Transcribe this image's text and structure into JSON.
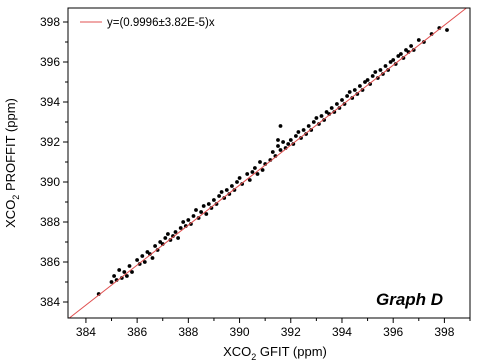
{
  "chart_data": {
    "type": "scatter",
    "xlabel": {
      "pre": "XCO",
      "sub": "2",
      "post": " GFIT (ppm)"
    },
    "ylabel": {
      "pre": "XCO",
      "sub": "2",
      "post": " PROFFIT (ppm)"
    },
    "xlim": [
      383.3,
      399.0
    ],
    "ylim": [
      383.2,
      398.7
    ],
    "xticks": [
      384,
      386,
      388,
      390,
      392,
      394,
      396,
      398
    ],
    "yticks": [
      384,
      386,
      388,
      390,
      392,
      394,
      396,
      398
    ],
    "grid": false,
    "legend": {
      "position": "top-left",
      "entries": [
        {
          "label": "y=(0.9996±3.82E-5)x",
          "color": "#e05050"
        }
      ]
    },
    "annotation": "Graph D",
    "fit_line": {
      "slope": 0.9996,
      "color": "#e05050"
    },
    "point_color": "#000000",
    "series": [
      {
        "type": "scatter",
        "points": [
          [
            384.5,
            384.4
          ],
          [
            385.0,
            385.0
          ],
          [
            385.1,
            385.3
          ],
          [
            385.2,
            385.1
          ],
          [
            385.3,
            385.6
          ],
          [
            385.4,
            385.2
          ],
          [
            385.5,
            385.5
          ],
          [
            385.6,
            385.3
          ],
          [
            385.7,
            385.8
          ],
          [
            385.8,
            385.5
          ],
          [
            386.0,
            386.1
          ],
          [
            386.1,
            385.9
          ],
          [
            386.2,
            386.3
          ],
          [
            386.3,
            386.0
          ],
          [
            386.4,
            386.5
          ],
          [
            386.5,
            386.4
          ],
          [
            386.6,
            386.2
          ],
          [
            386.7,
            386.8
          ],
          [
            386.8,
            386.6
          ],
          [
            386.9,
            387.0
          ],
          [
            387.0,
            386.9
          ],
          [
            387.1,
            387.2
          ],
          [
            387.2,
            387.4
          ],
          [
            387.3,
            387.1
          ],
          [
            387.4,
            387.3
          ],
          [
            387.5,
            387.5
          ],
          [
            387.6,
            387.2
          ],
          [
            387.7,
            387.7
          ],
          [
            387.8,
            388.0
          ],
          [
            387.9,
            387.8
          ],
          [
            388.0,
            388.1
          ],
          [
            388.1,
            387.9
          ],
          [
            388.2,
            388.3
          ],
          [
            388.3,
            388.6
          ],
          [
            388.4,
            388.2
          ],
          [
            388.5,
            388.5
          ],
          [
            388.6,
            388.8
          ],
          [
            388.7,
            388.4
          ],
          [
            388.8,
            388.9
          ],
          [
            388.9,
            388.7
          ],
          [
            389.0,
            389.1
          ],
          [
            389.1,
            388.9
          ],
          [
            389.2,
            389.3
          ],
          [
            389.3,
            389.5
          ],
          [
            389.4,
            389.2
          ],
          [
            389.5,
            389.6
          ],
          [
            389.6,
            389.4
          ],
          [
            389.7,
            389.8
          ],
          [
            389.8,
            389.6
          ],
          [
            389.9,
            390.0
          ],
          [
            390.0,
            390.2
          ],
          [
            390.1,
            389.9
          ],
          [
            390.3,
            390.4
          ],
          [
            390.4,
            390.1
          ],
          [
            390.5,
            390.5
          ],
          [
            390.6,
            390.7
          ],
          [
            390.7,
            390.4
          ],
          [
            390.8,
            391.0
          ],
          [
            390.9,
            390.6
          ],
          [
            391.0,
            390.9
          ],
          [
            391.2,
            391.1
          ],
          [
            391.3,
            391.5
          ],
          [
            391.4,
            391.3
          ],
          [
            391.5,
            391.8
          ],
          [
            391.5,
            392.1
          ],
          [
            391.6,
            391.6
          ],
          [
            391.7,
            392.0
          ],
          [
            391.8,
            391.7
          ],
          [
            391.9,
            391.9
          ],
          [
            391.6,
            392.8
          ],
          [
            392.0,
            392.1
          ],
          [
            392.1,
            391.9
          ],
          [
            392.2,
            392.3
          ],
          [
            392.3,
            392.5
          ],
          [
            392.4,
            392.2
          ],
          [
            392.5,
            392.6
          ],
          [
            392.6,
            392.4
          ],
          [
            392.7,
            392.8
          ],
          [
            392.8,
            392.6
          ],
          [
            392.9,
            393.0
          ],
          [
            393.0,
            393.2
          ],
          [
            393.1,
            392.9
          ],
          [
            393.2,
            393.3
          ],
          [
            393.3,
            393.1
          ],
          [
            393.4,
            393.5
          ],
          [
            393.5,
            393.4
          ],
          [
            393.6,
            393.7
          ],
          [
            393.7,
            393.5
          ],
          [
            393.8,
            393.9
          ],
          [
            393.9,
            393.7
          ],
          [
            394.0,
            394.1
          ],
          [
            394.1,
            393.9
          ],
          [
            394.2,
            394.3
          ],
          [
            394.3,
            394.5
          ],
          [
            394.4,
            394.2
          ],
          [
            394.5,
            394.6
          ],
          [
            394.6,
            394.4
          ],
          [
            394.7,
            394.8
          ],
          [
            394.8,
            394.6
          ],
          [
            394.9,
            395.0
          ],
          [
            395.0,
            395.1
          ],
          [
            395.1,
            394.9
          ],
          [
            395.2,
            395.3
          ],
          [
            395.3,
            395.5
          ],
          [
            395.4,
            395.2
          ],
          [
            395.5,
            395.6
          ],
          [
            395.6,
            395.4
          ],
          [
            395.7,
            395.8
          ],
          [
            395.8,
            395.6
          ],
          [
            395.9,
            396.0
          ],
          [
            396.0,
            396.1
          ],
          [
            396.1,
            395.9
          ],
          [
            396.2,
            396.3
          ],
          [
            396.3,
            396.4
          ],
          [
            396.4,
            396.2
          ],
          [
            396.5,
            396.6
          ],
          [
            396.6,
            396.5
          ],
          [
            396.7,
            396.8
          ],
          [
            396.8,
            396.6
          ],
          [
            397.0,
            397.1
          ],
          [
            397.2,
            397.0
          ],
          [
            397.5,
            397.4
          ],
          [
            397.8,
            397.7
          ],
          [
            398.1,
            397.6
          ]
        ]
      }
    ]
  }
}
